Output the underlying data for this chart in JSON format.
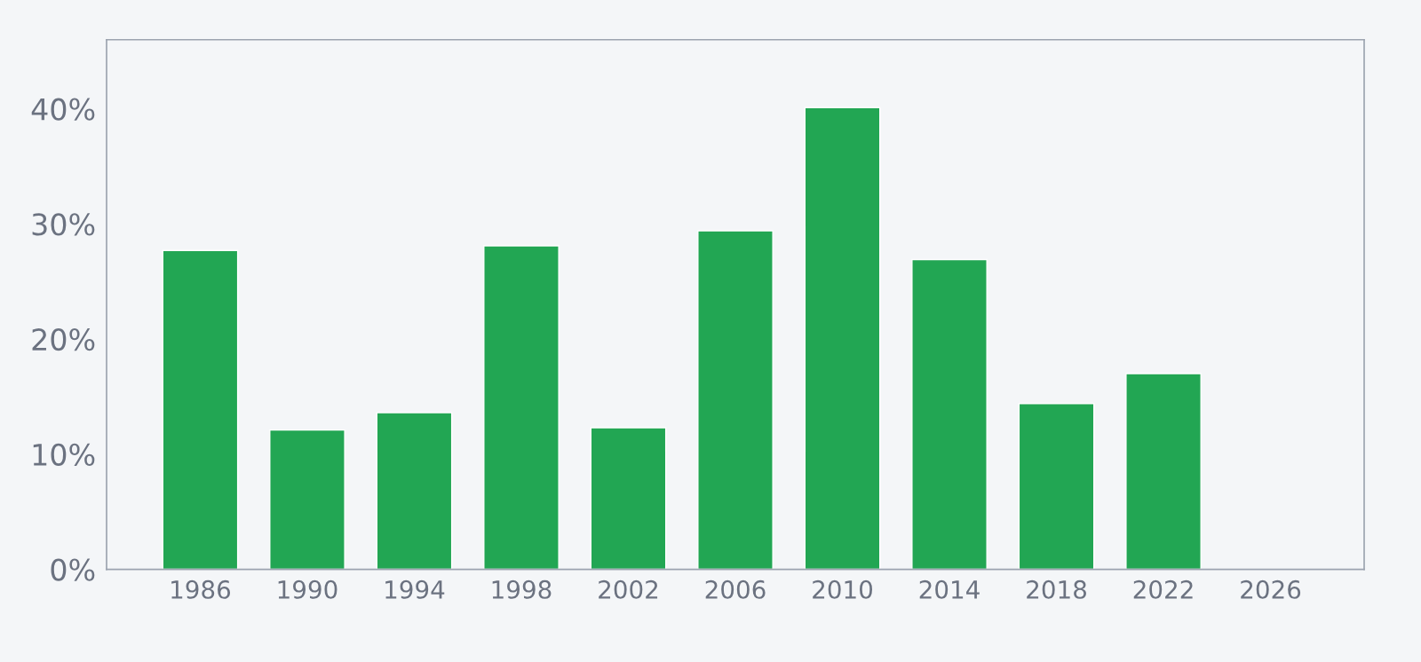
{
  "chart_data": {
    "type": "bar",
    "x": [
      1986,
      1990,
      1994,
      1998,
      2002,
      2006,
      2010,
      2014,
      2018,
      2022
    ],
    "values": [
      27.7,
      12.1,
      13.6,
      28.1,
      12.3,
      29.4,
      40.1,
      26.9,
      14.4,
      17.0
    ],
    "color": "#22a653",
    "xlim": [
      1982.5,
      2029.5
    ],
    "xticks": [
      1986,
      1990,
      1994,
      1998,
      2002,
      2006,
      2010,
      2014,
      2018,
      2022,
      2026
    ],
    "ylim": [
      0,
      46
    ],
    "yticks": [
      {
        "value": 0,
        "label": "0%"
      },
      {
        "value": 10,
        "label": "10%"
      },
      {
        "value": 20,
        "label": "20%"
      },
      {
        "value": 30,
        "label": "30%"
      },
      {
        "value": 40,
        "label": "40%"
      }
    ],
    "grid": false,
    "legend": false
  }
}
